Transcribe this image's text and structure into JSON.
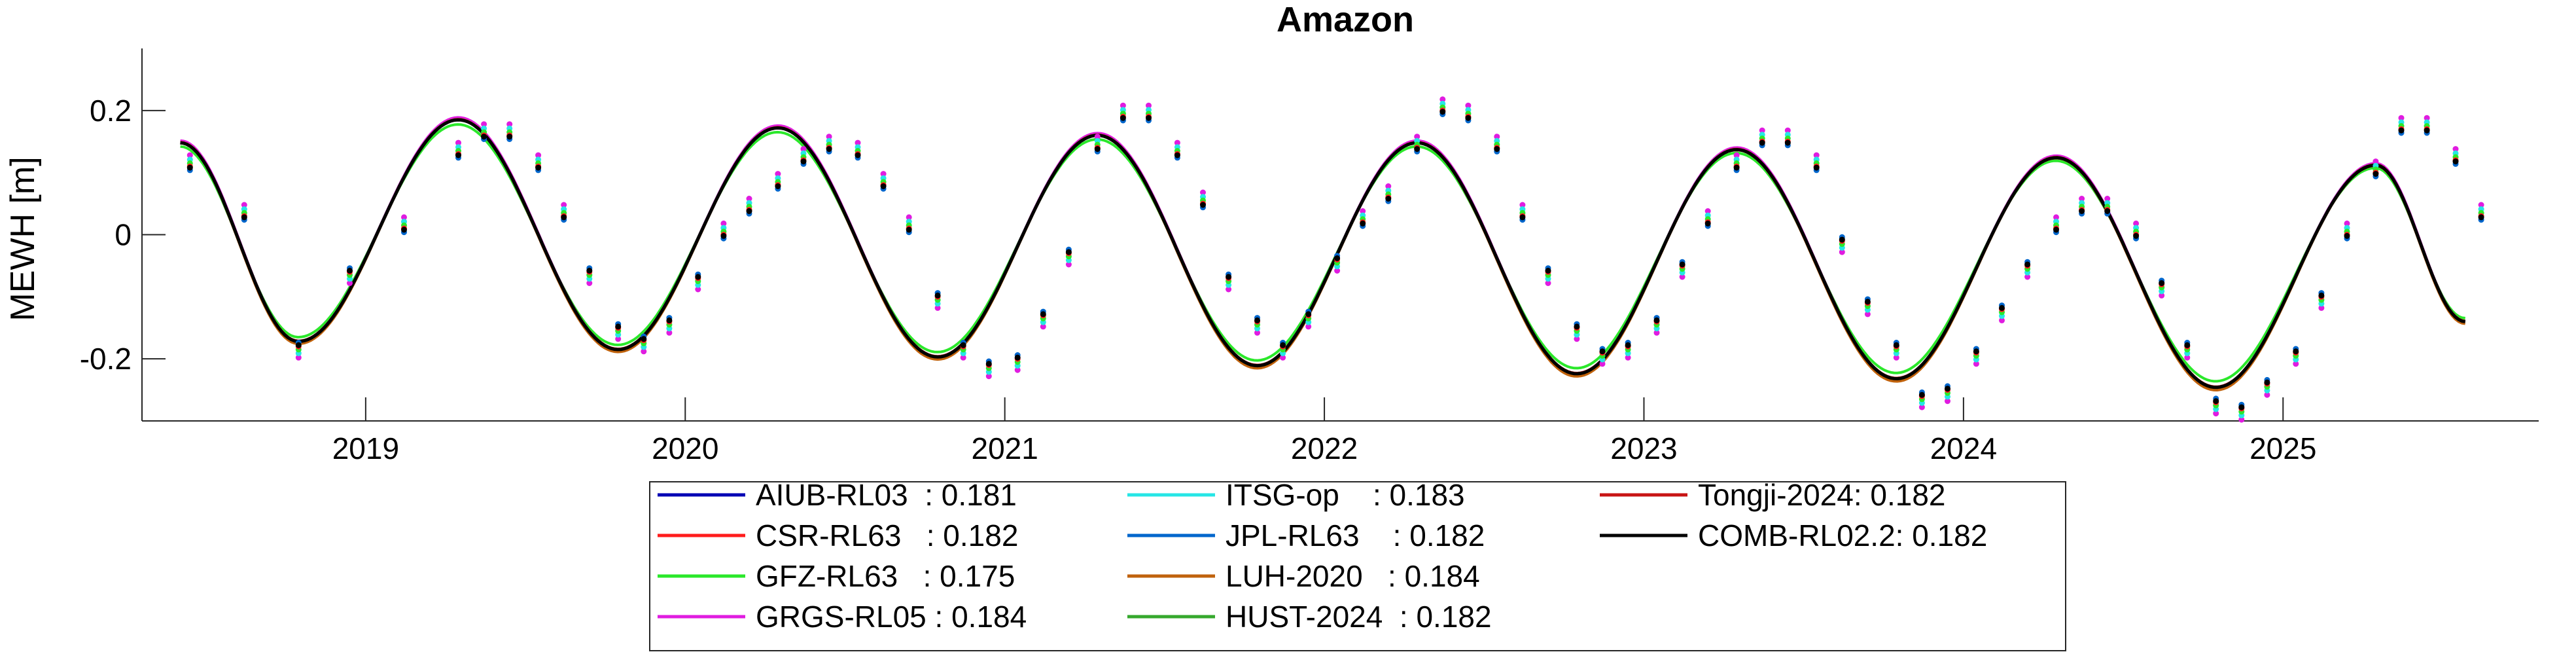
{
  "chart_data": {
    "type": "line",
    "title": "Amazon",
    "xlabel": "",
    "ylabel": "MEWH [m]",
    "xlim": [
      2018.3,
      2025.8
    ],
    "ylim": [
      -0.3,
      0.3
    ],
    "x_ticks": [
      2019,
      2020,
      2021,
      2022,
      2023,
      2024,
      2025
    ],
    "x_tick_labels": [
      "2019",
      "2020",
      "2021",
      "2022",
      "2023",
      "2024",
      "2025"
    ],
    "y_ticks": [
      -0.2,
      0,
      0.2
    ],
    "y_tick_labels": [
      "-0.2",
      "0",
      "0.2"
    ],
    "grid": false,
    "legend_position": "bottom-outside",
    "annual_fit": {
      "x": [
        2018.42,
        2018.79,
        2019.29,
        2019.79,
        2020.29,
        2020.79,
        2021.29,
        2021.79,
        2022.29,
        2022.79,
        2023.29,
        2023.79,
        2024.29,
        2024.79,
        2025.29,
        2025.57
      ],
      "y": [
        0.148,
        -0.172,
        0.185,
        -0.185,
        0.172,
        -0.197,
        0.16,
        -0.211,
        0.148,
        -0.224,
        0.137,
        -0.232,
        0.124,
        -0.246,
        0.112,
        -0.14
      ]
    },
    "series": [
      {
        "name": "AIUB-RL03",
        "value": "0.181",
        "color": "#0000b4",
        "offset": 0.0,
        "scale": 1.0,
        "shift": 0.0
      },
      {
        "name": "CSR-RL63",
        "value": "0.182",
        "color": "#ff1c1c",
        "offset": 0.001,
        "scale": 1.0,
        "shift": 0.0
      },
      {
        "name": "GFZ-RL63",
        "value": "0.175",
        "color": "#2be82b",
        "offset": 0.0,
        "scale": 0.96,
        "shift": 0.012
      },
      {
        "name": "GRGS-RL05",
        "value": "0.184",
        "color": "#e01ce0",
        "offset": 0.002,
        "scale": 1.01,
        "shift": -0.004
      },
      {
        "name": "ITSG-op",
        "value": "0.183",
        "color": "#26e6e6",
        "offset": 0.001,
        "scale": 1.0,
        "shift": 0.002
      },
      {
        "name": "JPL-RL63",
        "value": "0.182",
        "color": "#0066cc",
        "offset": 0.0,
        "scale": 1.0,
        "shift": 0.0
      },
      {
        "name": "LUH-2020",
        "value": "0.184",
        "color": "#c0620c",
        "offset": -0.002,
        "scale": 1.01,
        "shift": 0.003
      },
      {
        "name": "HUST-2024",
        "value": "0.182",
        "color": "#35a82d",
        "offset": 0.0,
        "scale": 1.0,
        "shift": 0.0
      },
      {
        "name": "Tongji-2024",
        "value": "0.182",
        "color": "#c81414",
        "offset": 0.0,
        "scale": 1.0,
        "shift": 0.0
      },
      {
        "name": "COMB-RL02.2",
        "value": "0.182",
        "color": "#000000",
        "offset": 0.0,
        "scale": 1.0,
        "shift": 0.0
      }
    ],
    "monthly_points": {
      "x": [
        2018.45,
        2018.62,
        2018.79,
        2018.95,
        2019.12,
        2019.29,
        2019.37,
        2019.45,
        2019.54,
        2019.62,
        2019.7,
        2019.79,
        2019.87,
        2019.95,
        2020.04,
        2020.12,
        2020.2,
        2020.29,
        2020.37,
        2020.45,
        2020.54,
        2020.62,
        2020.7,
        2020.79,
        2020.87,
        2020.95,
        2021.04,
        2021.12,
        2021.2,
        2021.29,
        2021.37,
        2021.45,
        2021.54,
        2021.62,
        2021.7,
        2021.79,
        2021.87,
        2021.95,
        2022.04,
        2022.12,
        2022.2,
        2022.29,
        2022.37,
        2022.45,
        2022.54,
        2022.62,
        2022.7,
        2022.79,
        2022.87,
        2022.95,
        2023.04,
        2023.12,
        2023.2,
        2023.29,
        2023.37,
        2023.45,
        2023.54,
        2023.62,
        2023.7,
        2023.79,
        2023.87,
        2023.95,
        2024.04,
        2024.12,
        2024.2,
        2024.29,
        2024.37,
        2024.45,
        2024.54,
        2024.62,
        2024.7,
        2024.79,
        2024.87,
        2024.95,
        2025.04,
        2025.12,
        2025.2,
        2025.29,
        2025.37,
        2025.45,
        2025.54,
        2025.62
      ],
      "y": [
        0.11,
        0.03,
        -0.18,
        -0.06,
        0.01,
        0.13,
        0.16,
        0.16,
        0.11,
        0.03,
        -0.06,
        -0.15,
        -0.17,
        -0.14,
        -0.07,
        0.0,
        0.04,
        0.08,
        0.12,
        0.14,
        0.13,
        0.08,
        0.01,
        -0.1,
        -0.18,
        -0.21,
        -0.2,
        -0.13,
        -0.03,
        0.14,
        0.19,
        0.19,
        0.13,
        0.05,
        -0.07,
        -0.14,
        -0.18,
        -0.13,
        -0.04,
        0.02,
        0.06,
        0.14,
        0.2,
        0.19,
        0.14,
        0.03,
        -0.06,
        -0.15,
        -0.19,
        -0.18,
        -0.14,
        -0.05,
        0.02,
        0.11,
        0.15,
        0.15,
        0.11,
        -0.01,
        -0.11,
        -0.18,
        -0.26,
        -0.25,
        -0.19,
        -0.12,
        -0.05,
        0.01,
        0.04,
        0.04,
        0.0,
        -0.08,
        -0.18,
        -0.27,
        -0.28,
        -0.24,
        -0.19,
        -0.1,
        0.0,
        0.1,
        0.17,
        0.17,
        0.12,
        0.03
      ]
    }
  }
}
